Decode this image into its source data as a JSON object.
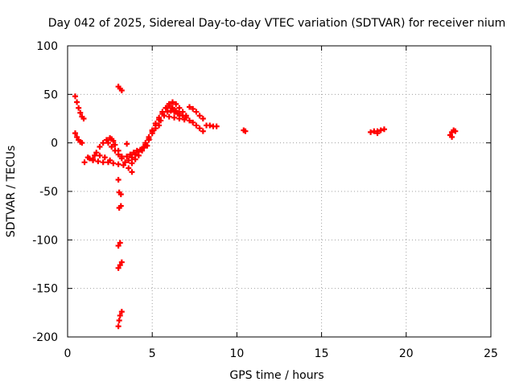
{
  "chart_data": {
    "type": "scatter",
    "title": "Day 042 of 2025, Sidereal Day-to-day VTEC variation (SDTVAR) for receiver nium",
    "xlabel": "GPS time / hours",
    "ylabel": "SDTVAR / TECUs",
    "xlim": [
      0,
      25
    ],
    "ylim": [
      -200,
      100
    ],
    "xticks": [
      0,
      5,
      10,
      15,
      20,
      25
    ],
    "yticks": [
      -200,
      -150,
      -100,
      -50,
      0,
      50,
      100
    ],
    "xtick_labels": [
      "0",
      "5",
      "10",
      "15",
      "20",
      "25"
    ],
    "ytick_labels": [
      "-200",
      "-150",
      "-100",
      "-50",
      "0",
      "50",
      "100"
    ],
    "grid": true,
    "legend": "none",
    "marker": "plus",
    "colors": {
      "series": "#ff0000",
      "grid": "#a0a0a0",
      "axis": "#000000"
    },
    "series": [
      {
        "name": "arc-1",
        "points": [
          [
            0.45,
            48
          ],
          [
            0.55,
            42
          ],
          [
            0.65,
            36
          ],
          [
            0.75,
            31
          ],
          [
            0.85,
            27
          ],
          [
            0.95,
            25
          ]
        ]
      },
      {
        "name": "arc-2",
        "points": [
          [
            0.45,
            10
          ],
          [
            0.55,
            6
          ],
          [
            0.65,
            3
          ],
          [
            0.75,
            1
          ],
          [
            0.85,
            0
          ]
        ]
      },
      {
        "name": "arc-3",
        "points": [
          [
            1.2,
            -15
          ],
          [
            1.5,
            -18
          ],
          [
            1.8,
            -19
          ],
          [
            2.1,
            -20
          ],
          [
            2.4,
            -20
          ],
          [
            2.7,
            -21
          ],
          [
            3.0,
            -22
          ],
          [
            3.3,
            -23
          ]
        ]
      },
      {
        "name": "arc-4",
        "points": [
          [
            1.5,
            -17
          ],
          [
            1.7,
            -10
          ],
          [
            1.9,
            -4
          ],
          [
            2.1,
            0
          ],
          [
            2.3,
            3
          ],
          [
            2.5,
            5
          ],
          [
            2.7,
            2
          ]
        ]
      },
      {
        "name": "arc-5",
        "points": [
          [
            1.0,
            -20
          ],
          [
            1.3,
            -16
          ],
          [
            1.6,
            -13
          ],
          [
            1.9,
            -13
          ],
          [
            2.2,
            -15
          ],
          [
            2.5,
            -18
          ]
        ]
      },
      {
        "name": "arc-6",
        "points": [
          [
            2.4,
            0
          ],
          [
            2.6,
            -4
          ],
          [
            2.8,
            -8
          ],
          [
            3.0,
            -12
          ],
          [
            3.2,
            -16
          ],
          [
            3.4,
            -20
          ],
          [
            3.6,
            -26
          ],
          [
            3.8,
            -30
          ]
        ]
      },
      {
        "name": "arc-7",
        "points": [
          [
            2.6,
            4
          ],
          [
            2.8,
            -2
          ],
          [
            3.0,
            -8
          ],
          [
            3.2,
            -14
          ]
        ]
      },
      {
        "name": "arc-8",
        "points": [
          [
            3.0,
            58
          ],
          [
            3.1,
            56
          ],
          [
            3.2,
            54
          ]
        ]
      },
      {
        "name": "arc-9",
        "points": [
          [
            3.0,
            -38
          ]
        ]
      },
      {
        "name": "arc-10",
        "points": [
          [
            3.05,
            -51
          ],
          [
            3.15,
            -53
          ]
        ]
      },
      {
        "name": "arc-11",
        "points": [
          [
            3.05,
            -67
          ],
          [
            3.15,
            -65
          ]
        ]
      },
      {
        "name": "arc-12",
        "points": [
          [
            3.0,
            -106
          ],
          [
            3.1,
            -103
          ]
        ]
      },
      {
        "name": "arc-13",
        "points": [
          [
            3.0,
            -129
          ],
          [
            3.1,
            -126
          ],
          [
            3.2,
            -123
          ]
        ]
      },
      {
        "name": "arc-14",
        "points": [
          [
            3.0,
            -189
          ],
          [
            3.05,
            -183
          ],
          [
            3.1,
            -178
          ],
          [
            3.2,
            -174
          ]
        ]
      },
      {
        "name": "arc-15",
        "points": [
          [
            3.5,
            -1
          ]
        ]
      },
      {
        "name": "arc-16",
        "points": [
          [
            3.5,
            -14
          ],
          [
            3.7,
            -12
          ],
          [
            3.9,
            -10
          ],
          [
            4.1,
            -8
          ],
          [
            4.3,
            -7
          ],
          [
            4.5,
            -5
          ],
          [
            4.7,
            -3
          ]
        ]
      },
      {
        "name": "arc-17",
        "points": [
          [
            3.6,
            -18
          ],
          [
            3.8,
            -15
          ],
          [
            4.0,
            -12
          ],
          [
            4.2,
            -9
          ],
          [
            4.4,
            -6
          ],
          [
            4.6,
            -2
          ],
          [
            4.8,
            3
          ]
        ]
      },
      {
        "name": "arc-18",
        "points": [
          [
            3.8,
            -21
          ],
          [
            4.0,
            -17
          ],
          [
            4.2,
            -13
          ],
          [
            4.4,
            -8
          ],
          [
            4.6,
            -2
          ],
          [
            4.8,
            4
          ],
          [
            5.0,
            10
          ],
          [
            5.2,
            15
          ],
          [
            5.4,
            18
          ]
        ]
      },
      {
        "name": "arc-19",
        "points": [
          [
            4.6,
            0
          ],
          [
            4.8,
            6
          ],
          [
            5.0,
            12
          ],
          [
            5.2,
            18
          ],
          [
            5.4,
            24
          ],
          [
            5.6,
            30
          ],
          [
            5.8,
            36
          ],
          [
            6.0,
            40
          ]
        ]
      },
      {
        "name": "arc-20",
        "points": [
          [
            5.0,
            13
          ],
          [
            5.2,
            20
          ],
          [
            5.4,
            26
          ],
          [
            5.6,
            32
          ],
          [
            5.8,
            36
          ],
          [
            6.0,
            38
          ]
        ]
      },
      {
        "name": "arc-21",
        "points": [
          [
            5.5,
            23
          ],
          [
            5.7,
            28
          ],
          [
            5.9,
            32
          ],
          [
            6.1,
            33
          ],
          [
            6.3,
            32
          ],
          [
            6.5,
            30
          ]
        ]
      },
      {
        "name": "arc-22",
        "points": [
          [
            6.0,
            40
          ],
          [
            6.2,
            42
          ],
          [
            6.4,
            40
          ],
          [
            6.6,
            36
          ],
          [
            6.8,
            32
          ],
          [
            7.0,
            28
          ]
        ]
      },
      {
        "name": "arc-23",
        "points": [
          [
            6.2,
            36
          ],
          [
            6.4,
            33
          ],
          [
            6.6,
            30
          ],
          [
            6.8,
            28
          ],
          [
            7.0,
            26
          ],
          [
            7.2,
            23
          ]
        ]
      },
      {
        "name": "arc-24",
        "points": [
          [
            6.0,
            27
          ],
          [
            6.3,
            26
          ],
          [
            6.6,
            25
          ],
          [
            6.9,
            24
          ]
        ]
      },
      {
        "name": "arc-25",
        "points": [
          [
            7.2,
            37
          ],
          [
            7.4,
            35
          ],
          [
            7.6,
            32
          ],
          [
            7.8,
            28
          ],
          [
            8.0,
            25
          ]
        ]
      },
      {
        "name": "arc-26",
        "points": [
          [
            7.4,
            21
          ],
          [
            7.6,
            18
          ],
          [
            7.8,
            15
          ],
          [
            8.0,
            12
          ]
        ]
      },
      {
        "name": "arc-27",
        "points": [
          [
            8.2,
            18
          ],
          [
            8.4,
            18
          ],
          [
            8.6,
            17
          ],
          [
            8.8,
            17
          ]
        ]
      },
      {
        "name": "arc-28",
        "points": [
          [
            10.4,
            13
          ],
          [
            10.5,
            12
          ]
        ]
      },
      {
        "name": "arc-29",
        "points": [
          [
            17.9,
            11
          ],
          [
            18.1,
            12
          ],
          [
            18.3,
            12
          ],
          [
            18.5,
            13
          ],
          [
            18.7,
            14
          ],
          [
            18.3,
            10
          ]
        ]
      },
      {
        "name": "arc-30",
        "points": [
          [
            22.6,
            8
          ],
          [
            22.7,
            11
          ],
          [
            22.8,
            13
          ],
          [
            22.9,
            12
          ],
          [
            22.7,
            6
          ]
        ]
      }
    ]
  }
}
